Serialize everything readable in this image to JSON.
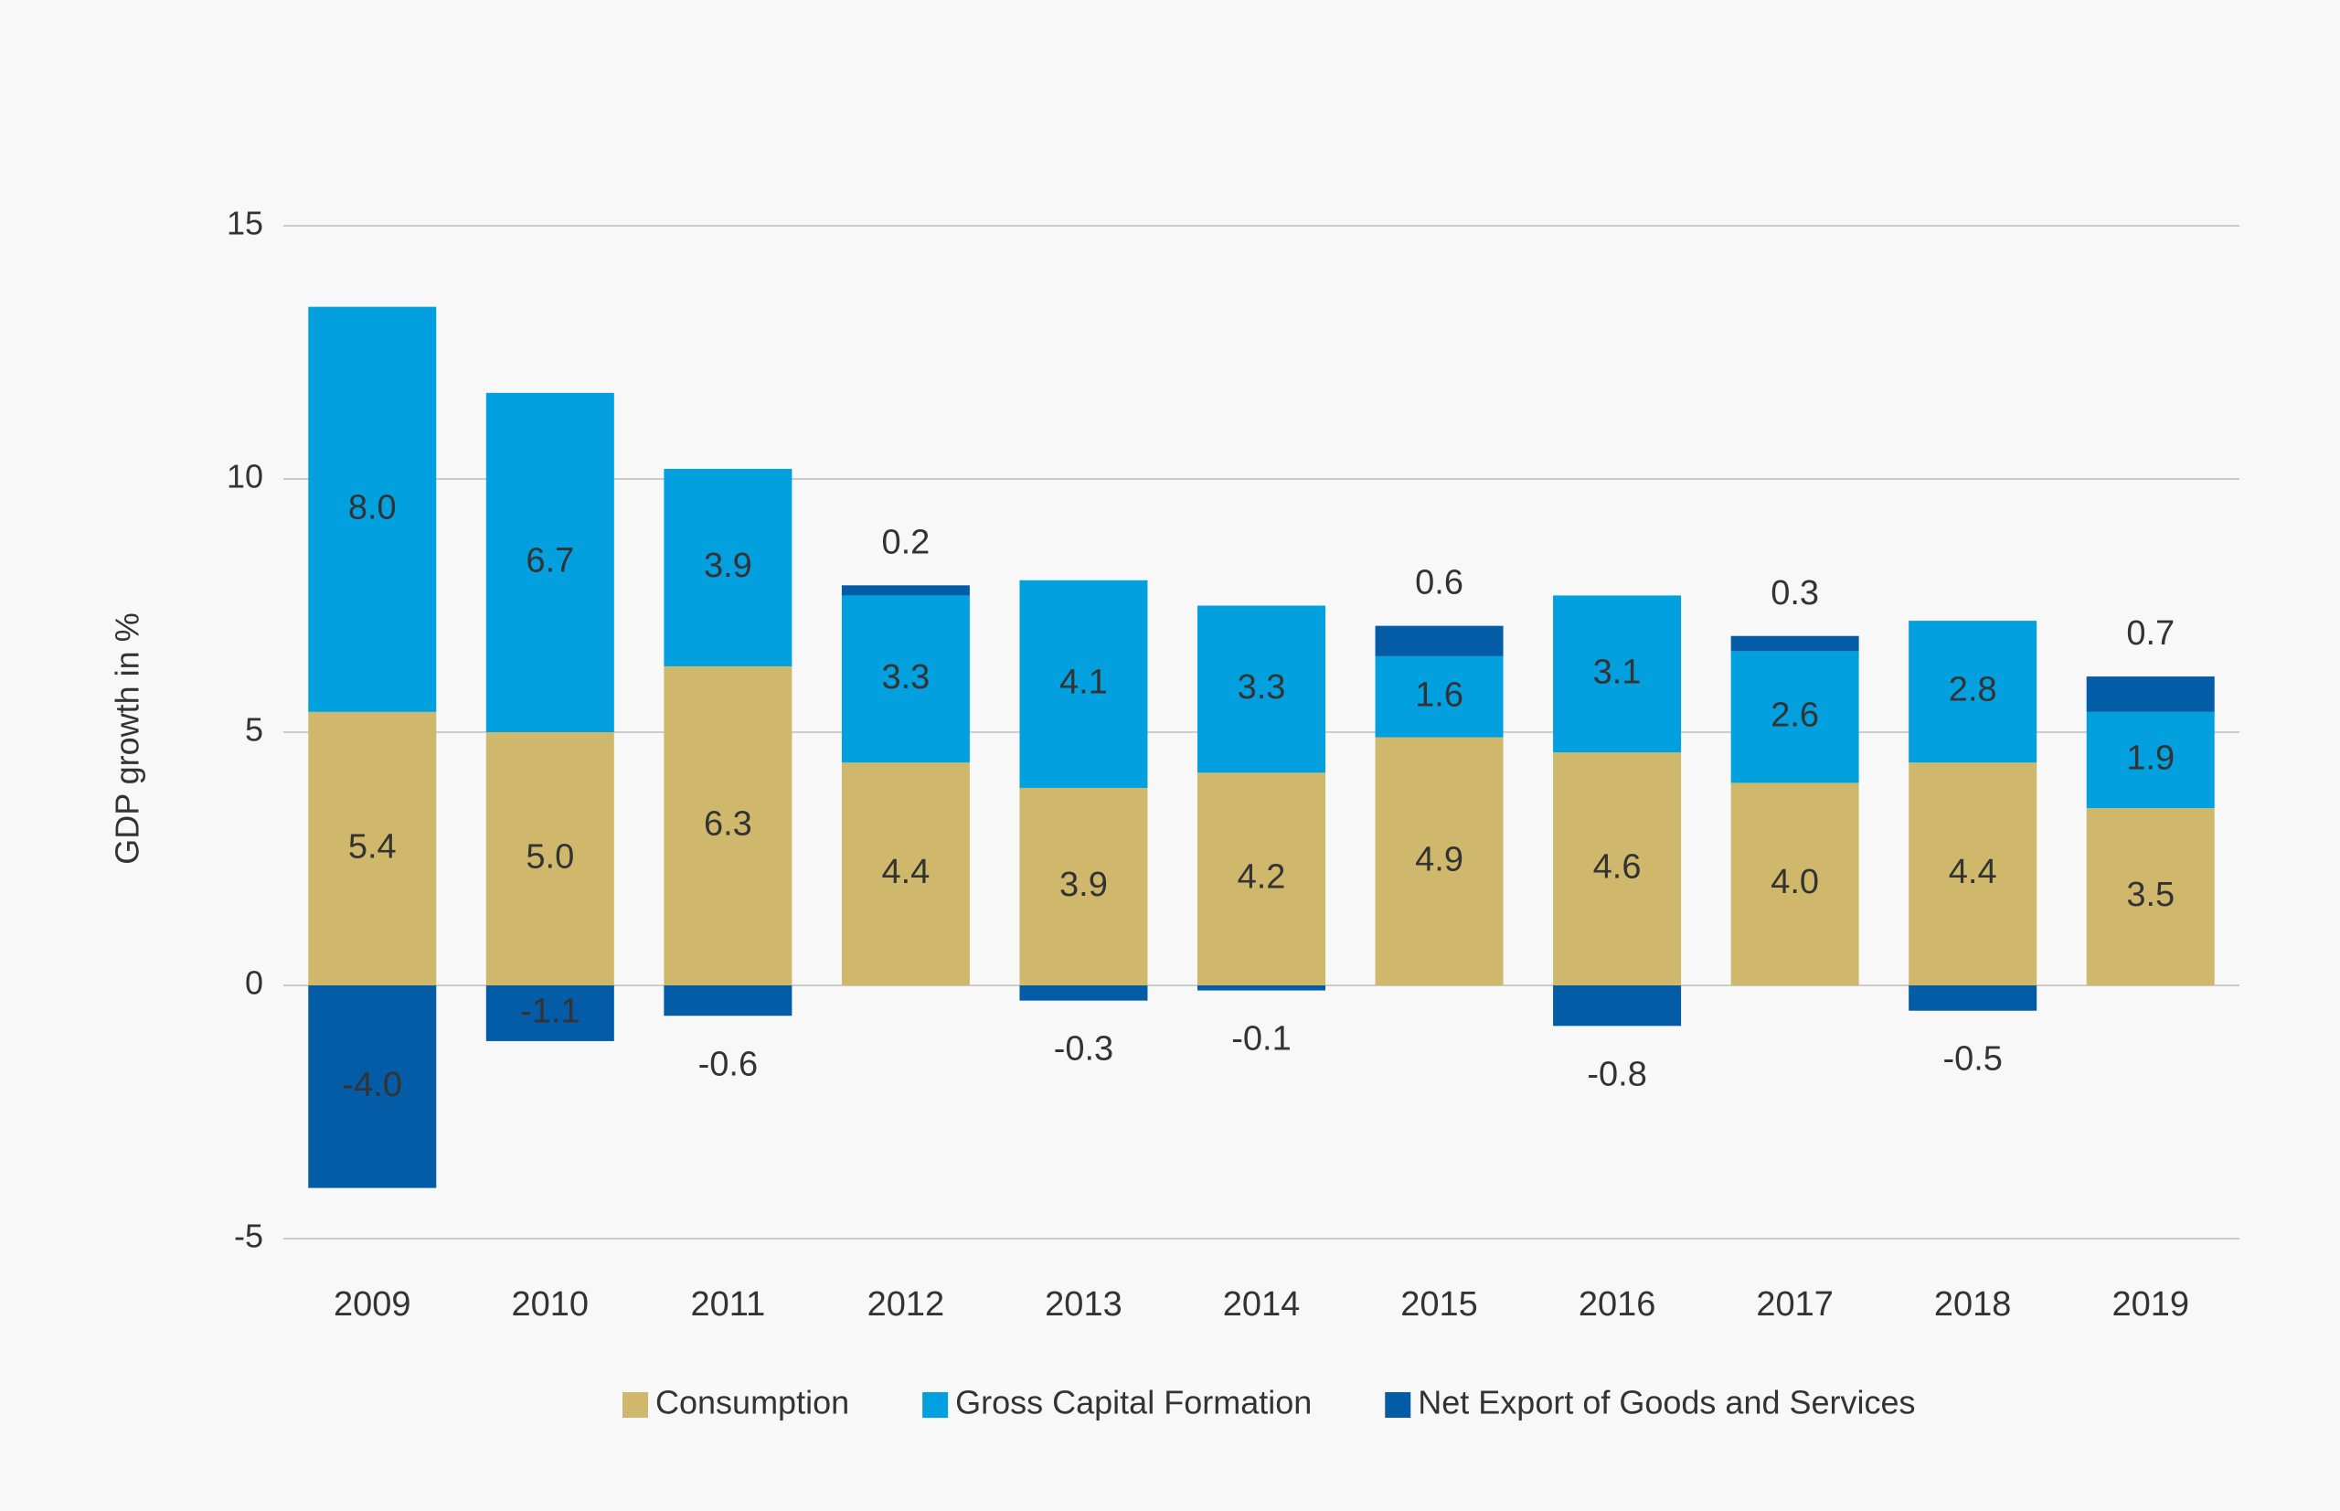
{
  "chart_data": {
    "type": "stacked_bar",
    "y_label": "GDP growth in %",
    "categories": [
      "2009",
      "2010",
      "2011",
      "2012",
      "2013",
      "2014",
      "2015",
      "2016",
      "2017",
      "2018",
      "2019"
    ],
    "series": [
      {
        "name": "Consumption",
        "color": "#cfb86c",
        "values": [
          5.4,
          5.0,
          6.3,
          4.4,
          3.9,
          4.2,
          4.9,
          4.6,
          4.0,
          4.4,
          3.5
        ],
        "value_labels": [
          "5.4",
          "5.0",
          "6.3",
          "4.4",
          "3.9",
          "4.2",
          "4.9",
          "4.6",
          "4.0",
          "4.4",
          "3.5"
        ]
      },
      {
        "name": "Gross Capital Formation",
        "color": "#03a0e0",
        "values": [
          8.0,
          6.7,
          3.9,
          3.3,
          4.1,
          3.3,
          1.6,
          3.1,
          2.6,
          2.8,
          1.9
        ],
        "value_labels": [
          "8.0",
          "6.7",
          "3.9",
          "3.3",
          "4.1",
          "3.3",
          "1.6",
          "3.1",
          "2.6",
          "2.8",
          "1.9"
        ]
      },
      {
        "name": "Net Export of Goods and Services",
        "color": "#045ca6",
        "values": [
          -4.0,
          -1.1,
          -0.6,
          0.2,
          -0.3,
          -0.1,
          0.6,
          -0.8,
          0.3,
          -0.5,
          0.7
        ],
        "value_labels": [
          "-4.0",
          "-1.1",
          "-0.6",
          "0.2",
          "-0.3",
          "-0.1",
          "0.6",
          "-0.8",
          "0.3",
          "-0.5",
          "0.7"
        ]
      }
    ],
    "ylim": [
      -5,
      15
    ],
    "yticks": [
      -5,
      0,
      5,
      10,
      15
    ],
    "grid": true,
    "legend": "bottom"
  }
}
